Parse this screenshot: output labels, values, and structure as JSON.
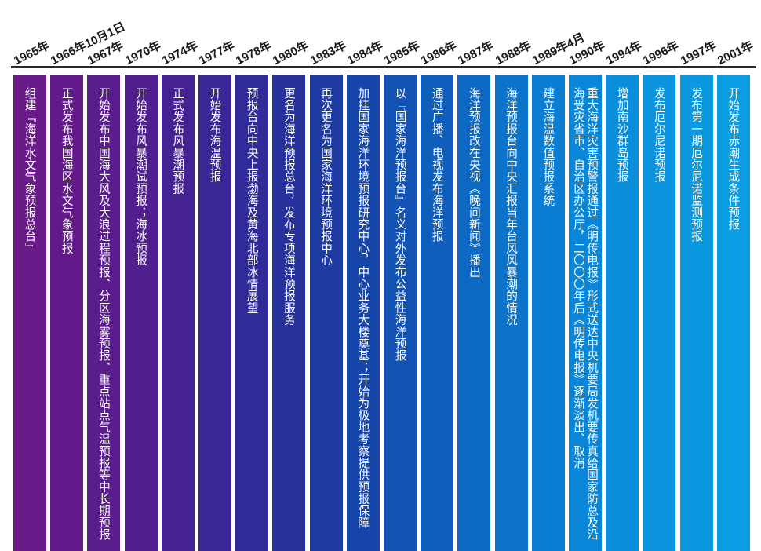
{
  "timeline": {
    "items": [
      {
        "year": "1965年",
        "text": "组建『海洋水文气象预报总台』",
        "color": "#6a1b8a"
      },
      {
        "year": "1966年10月1日",
        "text": "正式发布我国海区水文气象预报",
        "color": "#62198a"
      },
      {
        "year": "1967年",
        "text": "开始发布中国海大风及大浪过程预报、分区海雾预报、重点站点气温预报等中长期预报",
        "color": "#5a1d8c"
      },
      {
        "year": "1970年",
        "text": "开始发布风暴潮试预报；海冰预报",
        "color": "#4f1f8e"
      },
      {
        "year": "1974年",
        "text": "正式发布风暴潮预报",
        "color": "#442291"
      },
      {
        "year": "1977年",
        "text": "开始发布海温预报",
        "color": "#3a2694"
      },
      {
        "year": "1978年",
        "text": "预报台向中央上报渤海及黄海北部冰情展望",
        "color": "#302b98"
      },
      {
        "year": "1980年",
        "text": "更名为海洋预报总台，发布专项海洋预报服务",
        "color": "#26319c"
      },
      {
        "year": "1983年",
        "text": "再次更名为国家海洋环境预报中心",
        "color": "#1e3ba2"
      },
      {
        "year": "1984年",
        "text": "加挂国家海洋环境预报研究中心，中心业务大楼奠基；开始为极地考察提供预报保障",
        "color": "#1746aa"
      },
      {
        "year": "1985年",
        "text": "以『国家海洋预报台』名义对外发布公益性海洋预报",
        "color": "#1252b3"
      },
      {
        "year": "1986年",
        "text": "通过广播、电视发布海洋预报",
        "color": "#0f5ebc"
      },
      {
        "year": "1987年",
        "text": "海洋预报改在央视《晚间新闻》播出",
        "color": "#0d69c4"
      },
      {
        "year": "1988年",
        "text": "海洋预报台向中央汇报当年台风风暴潮的情况",
        "color": "#0c73cb"
      },
      {
        "year": "1989年4月",
        "text": "建立海温数值预报系统",
        "color": "#0b7dd2"
      },
      {
        "year": "1990年",
        "text": "重大海洋灾害预警报通过《明传电报》形式送达中央机要局发机要传真给国家防总及沿海受灾省市、自治区办公厅，二〇〇〇年后《明传电报》逐渐淡出、取消",
        "color": "#0a86d8"
      },
      {
        "year": "1994年",
        "text": "增加南沙群岛预报",
        "color": "#0a8edc"
      },
      {
        "year": "1996年",
        "text": "发布厄尔尼诺预报",
        "color": "#0a94df"
      },
      {
        "year": "1997年",
        "text": "发布第一期厄尔尼诺监测预报",
        "color": "#0a99e1"
      },
      {
        "year": "2001年",
        "text": "开始发布赤潮生成条件预报",
        "color": "#0a9de3"
      }
    ]
  }
}
